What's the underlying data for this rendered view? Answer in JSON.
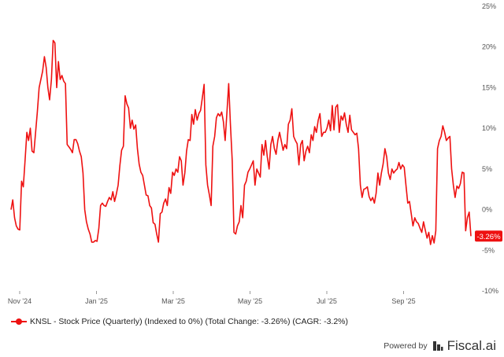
{
  "chart_data": {
    "type": "line",
    "title": "",
    "xlabel": "",
    "ylabel": "",
    "x_ticks": [
      "Nov '24",
      "Jan '25",
      "Mar '25",
      "May '25",
      "Jul '25",
      "Sep '25"
    ],
    "y_ticks": [
      "25%",
      "20%",
      "15%",
      "10%",
      "5%",
      "0%",
      "-5%",
      "-10%"
    ],
    "ylim": [
      -10,
      25
    ],
    "grid": false,
    "series": [
      {
        "name": "KNSL - Stock Price (Quarterly) (Indexed to 0%) (Total Change: -3.26%) (CAGR: -3.2%)",
        "color": "#ee1111",
        "values": [
          0,
          1.2,
          -1.0,
          -2.0,
          -2.4,
          -2.5,
          3.5,
          2.8,
          6.0,
          9.5,
          8.5,
          10.0,
          7.2,
          7.0,
          9.5,
          12.0,
          15.0,
          16.0,
          17.0,
          18.8,
          17.5,
          15.0,
          13.5,
          16.0,
          20.8,
          20.5,
          15.0,
          18.2,
          16.0,
          16.5,
          15.8,
          15.5,
          8.0,
          7.7,
          7.4,
          7.0,
          8.6,
          8.6,
          8.1,
          7.2,
          6.5,
          4.5,
          0,
          -1.5,
          -2.4,
          -3.0,
          -4.0,
          -4.0,
          -3.8,
          -3.9,
          -2.3,
          0.5,
          0.8,
          0.5,
          0.4,
          1.0,
          1.5,
          1.2,
          2.2,
          1.0,
          1.9,
          3.0,
          5.4,
          7.3,
          7.8,
          14.0,
          13.0,
          12.5,
          10.0,
          11.0,
          9.9,
          10.4,
          7.5,
          5.6,
          4.6,
          4.2,
          3.0,
          1.8,
          1.7,
          0.5,
          0.2,
          -1.6,
          -1.8,
          -3.0,
          -4.0,
          -0.5,
          -0.3,
          0.8,
          1.3,
          0.5,
          2.7,
          2.0,
          4.6,
          4.2,
          5.0,
          4.6,
          6.5,
          6.0,
          3.0,
          4.5,
          7.2,
          8.6,
          8.5,
          11.7,
          10.5,
          12.3,
          11.0,
          11.8,
          12.2,
          13.8,
          15.4,
          5.5,
          3.0,
          1.8,
          0.5,
          7.8,
          9.0,
          11.3,
          11.8,
          11.5,
          12.0,
          10.8,
          8.5,
          12.0,
          15.5,
          10.5,
          6.0,
          -2.8,
          -3.0,
          -2.0,
          -1.5,
          0.5,
          -1.0,
          3.0,
          3.5,
          4.6,
          5.0,
          5.5,
          6.0,
          3.0,
          5.0,
          4.5,
          4.0,
          8.0,
          6.7,
          8.5,
          6.5,
          5.0,
          8.0,
          9.0,
          7.5,
          6.8,
          8.5,
          9.5,
          8.4,
          7.3,
          8.0,
          7.5,
          10.5,
          11.0,
          12.4,
          9.0,
          8.5,
          8.1,
          5.5,
          8.0,
          8.5,
          6.0,
          7.2,
          7.8,
          7.0,
          9.2,
          8.5,
          10.2,
          9.5,
          11.0,
          11.8,
          9.0,
          9.5,
          9.5,
          10.0,
          11.0,
          9.7,
          12.8,
          9.8,
          12.6,
          12.9,
          9.5,
          11.5,
          11.0,
          11.9,
          10.5,
          9.5,
          11.6,
          9.8,
          9.5,
          9.2,
          9.4,
          7.5,
          3.0,
          1.5,
          2.5,
          2.6,
          2.8,
          1.6,
          1.1,
          1.5,
          0.8,
          2.0,
          4.5,
          3.0,
          4.5,
          5.6,
          7.5,
          6.5,
          4.5,
          3.7,
          5.0,
          4.5,
          4.8,
          5.0,
          5.8,
          5.0,
          5.5,
          5.2,
          3.0,
          0.8,
          1.0,
          -0.5,
          -2.0,
          -1.0,
          -1.5,
          -1.7,
          -2.3,
          -2.8,
          -1.5,
          -2.5,
          -3.5,
          -2.8,
          -4.3,
          -3.2,
          -4.1,
          -2.6,
          7.5,
          8.5,
          9.0,
          10.3,
          9.5,
          8.5,
          8.8,
          9.0,
          5.0,
          3.0,
          1.5,
          2.9,
          2.6,
          3.2,
          4.6,
          4.5,
          -2.6,
          -1.0,
          -0.3,
          -3.26
        ]
      }
    ],
    "end_label": "-3.26%"
  },
  "legend": {
    "label": "KNSL - Stock Price (Quarterly) (Indexed to 0%) (Total Change: -3.26%) (CAGR: -3.2%)"
  },
  "footer": {
    "powered_by": "Powered by",
    "brand": "Fiscal.ai"
  }
}
